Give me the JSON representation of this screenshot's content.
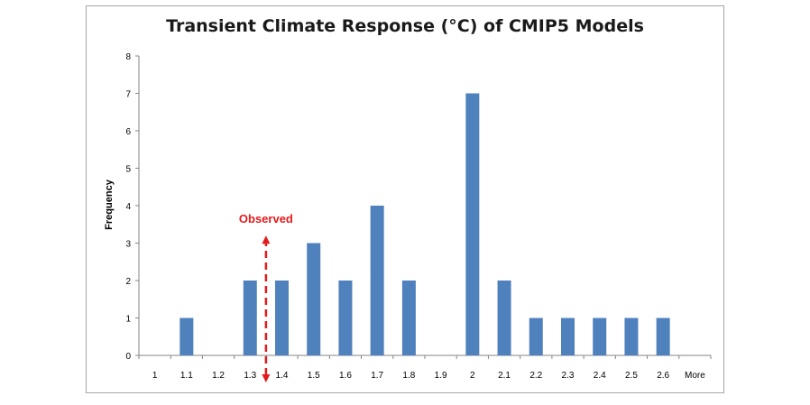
{
  "chart_data": {
    "type": "bar",
    "title": "Transient Climate Response (°C) of CMIP5 Models",
    "xlabel": "",
    "ylabel": "Frequency",
    "categories": [
      "1",
      "1.1",
      "1.2",
      "1.3",
      "1.4",
      "1.5",
      "1.6",
      "1.7",
      "1.8",
      "1.9",
      "2",
      "2.1",
      "2.2",
      "2.3",
      "2.4",
      "2.5",
      "2.6",
      "More"
    ],
    "values": [
      0,
      1,
      0,
      2,
      2,
      3,
      2,
      4,
      2,
      0,
      7,
      2,
      1,
      1,
      1,
      1,
      1,
      0
    ],
    "ylim": [
      0,
      8
    ],
    "yticks": [
      "0",
      "1",
      "2",
      "3",
      "4",
      "5",
      "6",
      "7",
      "8"
    ],
    "grid": false,
    "legend": "none",
    "bar_color": "#4f81bd",
    "annotation": {
      "text": "Observed",
      "x_value": 1.35,
      "y_from": 0,
      "y_to": 3.2,
      "color": "#e31a1c"
    }
  }
}
